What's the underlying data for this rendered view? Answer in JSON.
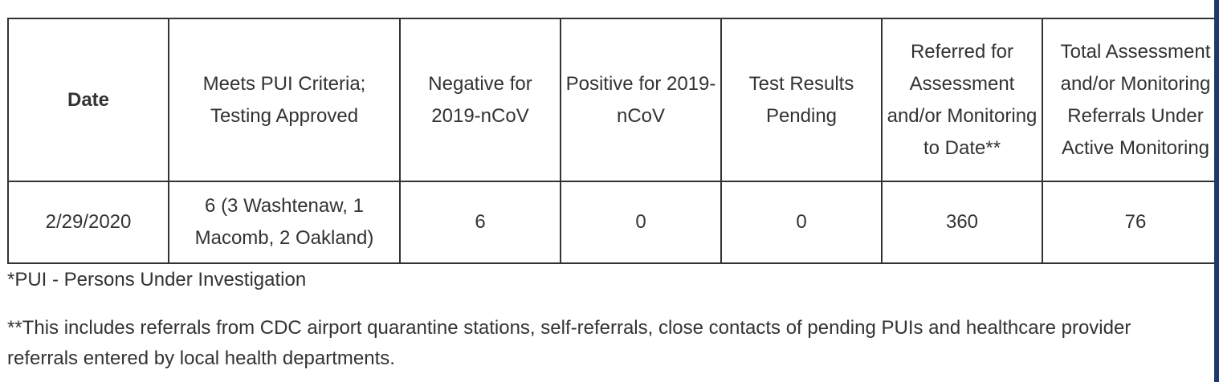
{
  "table": {
    "header": [
      "Date",
      "Meets PUI Criteria; Testing Approved",
      "Negative for 2019-nCoV",
      "Positive for 2019-nCoV",
      "Test Results Pending",
      "Referred for Assessment and/or Monitoring to Date**",
      "Total Assessment and/or Monitoring Referrals Under Active Monitoring"
    ],
    "rows": [
      [
        "2/29/2020",
        "6 (3 Washtenaw, 1 Macomb, 2 Oakland)",
        6,
        0,
        0,
        360,
        76
      ]
    ]
  },
  "footnotes": [
    "*PUI - Persons Under Investigation",
    "**This includes referrals from CDC airport quarantine stations, self-referrals, close contacts of pending PUIs and healthcare provider referrals entered by local health departments."
  ]
}
